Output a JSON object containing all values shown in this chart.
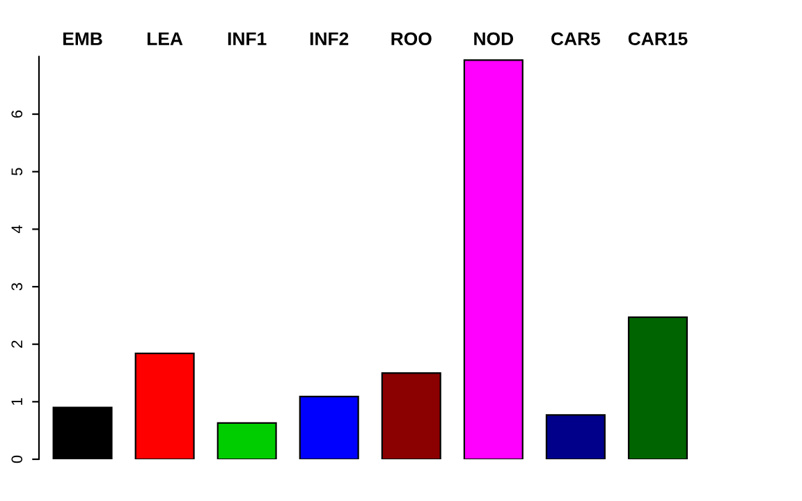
{
  "chart_data": {
    "type": "bar",
    "categories": [
      "EMB",
      "LEA",
      "INF1",
      "INF2",
      "ROO",
      "NOD",
      "CAR5",
      "CAR15"
    ],
    "values": [
      0.9,
      1.84,
      0.63,
      1.09,
      1.5,
      6.94,
      0.77,
      2.47
    ],
    "colors": [
      "#000000",
      "#ff0000",
      "#00cd00",
      "#0000ff",
      "#8b0000",
      "#ff00ff",
      "#00008b",
      "#006400"
    ],
    "ylim": [
      0,
      7
    ],
    "yticks": [
      0,
      1,
      2,
      3,
      4,
      5,
      6
    ],
    "grid": false,
    "legend": false
  }
}
